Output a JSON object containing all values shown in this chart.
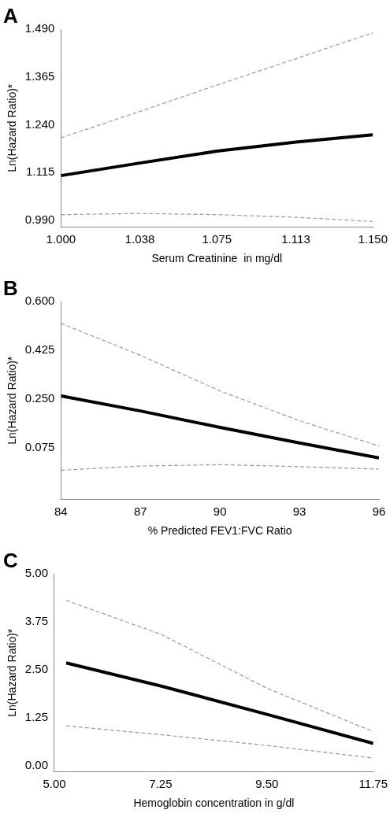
{
  "chart_data": [
    {
      "type": "line",
      "title": "A",
      "xlabel": "Serum Creatinine  in mg/dl",
      "ylabel": "Ln(Hazard Ratio)*",
      "x": [
        1.0,
        1.038,
        1.075,
        1.113,
        1.15
      ],
      "grid": false,
      "legend": false,
      "marker": "none",
      "xlim": [
        1.0,
        1.15
      ],
      "xticks": [
        {
          "value": 1,
          "label": "1.000"
        },
        1.038,
        1.075,
        1.113,
        {
          "value": 1.15,
          "label": "1.150"
        }
      ],
      "ylim": [
        0.973,
        1.49
      ],
      "yticks": [
        {
          "value": 0.99,
          "label": "0.990"
        },
        1.115,
        {
          "value": 1.24,
          "label": "1.240"
        },
        1.365,
        {
          "value": 1.49,
          "label": "1.490"
        }
      ],
      "series": [
        {
          "color": "#000000",
          "line_style": "solid",
          "values": [
            1.107,
            1.14,
            1.171,
            1.195,
            1.214
          ]
        },
        {
          "color": "#999999",
          "line_style": "dashed",
          "values": [
            1.206,
            1.275,
            1.344,
            1.413,
            1.481
          ]
        },
        {
          "color": "#999999",
          "line_style": "dashed",
          "values": [
            1.005,
            1.008,
            1.005,
            0.998,
            0.987
          ]
        }
      ]
    },
    {
      "type": "line",
      "title": "B",
      "xlabel": "% Predicted FEV1:FVC Ratio",
      "ylabel": "Ln(Hazard Ratio)*",
      "x": [
        84,
        87,
        90,
        93,
        96
      ],
      "grid": false,
      "legend": false,
      "marker": "none",
      "xlim": [
        84,
        96
      ],
      "xticks": [
        84,
        87,
        90,
        93,
        96
      ],
      "ylim": [
        -0.11,
        0.6
      ],
      "yticks": [
        0.075,
        {
          "value": 0.25,
          "label": "0.250"
        },
        0.425,
        {
          "value": 0.6,
          "label": "0.600"
        }
      ],
      "series": [
        {
          "color": "#000000",
          "line_style": "solid",
          "values": [
            0.261,
            0.207,
            0.148,
            0.092,
            0.038
          ]
        },
        {
          "color": "#999999",
          "line_style": "dashed",
          "values": [
            0.522,
            0.407,
            0.279,
            0.172,
            0.081
          ]
        },
        {
          "color": "#999999",
          "line_style": "dashed",
          "values": [
            -0.006,
            0.009,
            0.014,
            0.007,
            -0.002
          ]
        }
      ]
    },
    {
      "type": "line",
      "title": "C",
      "xlabel": "Hemoglobin concentration in g/dl",
      "ylabel": "Ln(Hazard Ratio)*",
      "x": [
        5.25,
        7.25,
        9.5,
        11.75
      ],
      "grid": false,
      "legend": false,
      "marker": "none",
      "xlim": [
        5.0,
        11.75
      ],
      "xticks": [
        {
          "value": 5,
          "label": "5.00"
        },
        7.25,
        {
          "value": 9.5,
          "label": "9.50"
        },
        11.75
      ],
      "ylim": [
        -0.15,
        5.0
      ],
      "yticks": [
        {
          "value": 0,
          "label": "0.00"
        },
        1.25,
        {
          "value": 2.5,
          "label": "2.50"
        },
        3.75,
        {
          "value": 5,
          "label": "5.00"
        }
      ],
      "series": [
        {
          "color": "#000000",
          "line_style": "solid",
          "values": [
            2.68,
            2.08,
            1.34,
            0.58
          ]
        },
        {
          "color": "#999999",
          "line_style": "dashed",
          "values": [
            4.31,
            3.43,
            2.02,
            0.89
          ]
        },
        {
          "color": "#999999",
          "line_style": "dashed",
          "values": [
            1.04,
            0.81,
            0.53,
            0.2
          ]
        }
      ]
    }
  ]
}
